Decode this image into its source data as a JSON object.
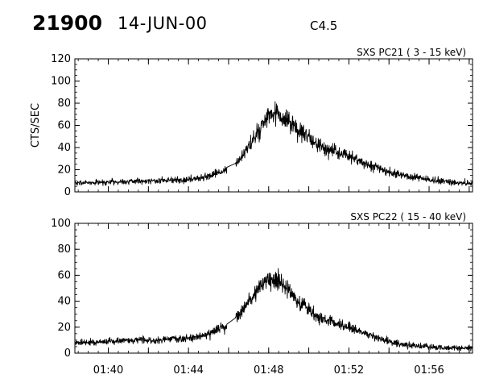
{
  "header": {
    "event_number": "21900",
    "date": "14-JUN-00",
    "flare_class": "C4.5"
  },
  "chart_data": [
    {
      "type": "line",
      "title": "SXS PC21  (  3 - 15 keV)",
      "ylabel": "CTS/SEC",
      "xlabel": "",
      "xlim": [
        "01:38:20",
        "01:58:10"
      ],
      "ylim": [
        0,
        120
      ],
      "yticks": [
        0,
        20,
        40,
        60,
        80,
        100,
        120
      ],
      "grid": false,
      "series": [
        {
          "x": [
            "01:38:20",
            "01:40:00",
            "01:42:00",
            "01:44:00",
            "01:45:00",
            "01:46:00",
            "01:46:30",
            "01:47:00",
            "01:47:30",
            "01:48:00",
            "01:48:30",
            "01:49:00",
            "01:49:30",
            "01:50:00",
            "01:50:30",
            "01:51:00",
            "01:51:30",
            "01:52:00",
            "01:52:30",
            "01:53:00",
            "01:54:00",
            "01:55:00",
            "01:56:00",
            "01:57:00",
            "01:58:10"
          ],
          "values": [
            8,
            9,
            10,
            11,
            14,
            20,
            28,
            40,
            55,
            68,
            70,
            62,
            55,
            48,
            42,
            38,
            35,
            32,
            28,
            24,
            18,
            14,
            11,
            9,
            7
          ]
        }
      ]
    },
    {
      "type": "line",
      "title": "SXS PC22  ( 15 - 40 keV)",
      "ylabel": "",
      "xlabel": "",
      "xlim": [
        "01:38:20",
        "01:58:10"
      ],
      "ylim": [
        0,
        100
      ],
      "yticks": [
        0,
        20,
        40,
        60,
        80,
        100
      ],
      "xticks": [
        "01:40",
        "01:44",
        "01:48",
        "01:52",
        "01:56"
      ],
      "grid": false,
      "series": [
        {
          "x": [
            "01:38:20",
            "01:40:00",
            "01:42:00",
            "01:44:00",
            "01:45:00",
            "01:46:00",
            "01:46:30",
            "01:47:00",
            "01:47:30",
            "01:48:00",
            "01:48:30",
            "01:49:00",
            "01:49:30",
            "01:50:00",
            "01:50:30",
            "01:51:00",
            "01:51:30",
            "01:52:00",
            "01:52:30",
            "01:53:00",
            "01:54:00",
            "01:55:00",
            "01:56:00",
            "01:57:00",
            "01:58:10"
          ],
          "values": [
            8,
            9,
            10,
            11,
            15,
            22,
            30,
            40,
            50,
            58,
            56,
            48,
            40,
            34,
            28,
            25,
            22,
            20,
            17,
            14,
            9,
            6,
            5,
            4,
            4
          ]
        }
      ]
    }
  ]
}
